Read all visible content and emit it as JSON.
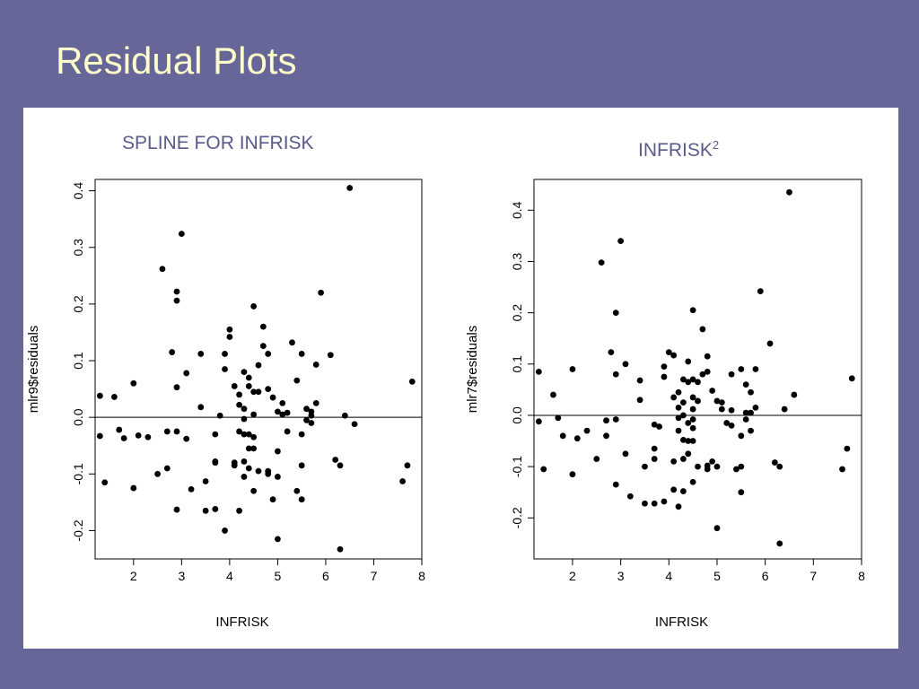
{
  "slide": {
    "title": "Residual Plots"
  },
  "chart_data": [
    {
      "type": "scatter",
      "title": "SPLINE FOR INFRISK",
      "xlabel": "INFRISK",
      "ylabel": "mlr9$residuals",
      "xlim": [
        1.2,
        8.0
      ],
      "ylim": [
        -0.25,
        0.42
      ],
      "xticks": [
        "2",
        "3",
        "4",
        "5",
        "6",
        "7",
        "8"
      ],
      "yticks": [
        "-0.2",
        "-0.1",
        "0.0",
        "0.1",
        "0.2",
        "0.3",
        "0.4"
      ],
      "reference_line_y": 0,
      "grid": false,
      "points": [
        [
          1.3,
          0.038
        ],
        [
          1.3,
          -0.033
        ],
        [
          1.4,
          -0.115
        ],
        [
          1.6,
          0.036
        ],
        [
          1.7,
          -0.022
        ],
        [
          1.8,
          -0.037
        ],
        [
          2.0,
          0.06
        ],
        [
          2.0,
          -0.125
        ],
        [
          2.1,
          -0.032
        ],
        [
          2.3,
          -0.035
        ],
        [
          2.5,
          -0.1
        ],
        [
          2.6,
          0.262
        ],
        [
          2.7,
          -0.025
        ],
        [
          2.7,
          -0.09
        ],
        [
          2.8,
          0.115
        ],
        [
          2.9,
          0.222
        ],
        [
          2.9,
          0.206
        ],
        [
          2.9,
          0.053
        ],
        [
          2.9,
          -0.025
        ],
        [
          2.9,
          -0.163
        ],
        [
          3.0,
          0.324
        ],
        [
          3.1,
          0.078
        ],
        [
          3.1,
          -0.038
        ],
        [
          3.2,
          -0.127
        ],
        [
          3.4,
          0.112
        ],
        [
          3.4,
          0.018
        ],
        [
          3.5,
          -0.113
        ],
        [
          3.5,
          -0.165
        ],
        [
          3.7,
          -0.03
        ],
        [
          3.7,
          -0.078
        ],
        [
          3.7,
          -0.08
        ],
        [
          3.7,
          -0.162
        ],
        [
          3.8,
          0.003
        ],
        [
          3.9,
          0.112
        ],
        [
          3.9,
          0.085
        ],
        [
          3.9,
          -0.2
        ],
        [
          4.0,
          0.142
        ],
        [
          4.0,
          0.155
        ],
        [
          4.1,
          0.055
        ],
        [
          4.1,
          -0.08
        ],
        [
          4.1,
          -0.085
        ],
        [
          4.2,
          0.04
        ],
        [
          4.2,
          0.022
        ],
        [
          4.2,
          -0.025
        ],
        [
          4.2,
          -0.165
        ],
        [
          4.3,
          0.08
        ],
        [
          4.3,
          0.015
        ],
        [
          4.3,
          -0.003
        ],
        [
          4.3,
          -0.03
        ],
        [
          4.3,
          -0.078
        ],
        [
          4.3,
          -0.105
        ],
        [
          4.4,
          0.07
        ],
        [
          4.4,
          0.055
        ],
        [
          4.4,
          -0.03
        ],
        [
          4.4,
          -0.055
        ],
        [
          4.4,
          -0.09
        ],
        [
          4.5,
          0.196
        ],
        [
          4.5,
          0.045
        ],
        [
          4.5,
          0.005
        ],
        [
          4.5,
          -0.035
        ],
        [
          4.5,
          -0.055
        ],
        [
          4.5,
          -0.13
        ],
        [
          4.6,
          0.092
        ],
        [
          4.6,
          0.045
        ],
        [
          4.6,
          -0.095
        ],
        [
          4.7,
          0.16
        ],
        [
          4.7,
          0.126
        ],
        [
          4.8,
          0.112
        ],
        [
          4.8,
          0.05
        ],
        [
          4.8,
          -0.1
        ],
        [
          4.8,
          -0.095
        ],
        [
          4.9,
          0.035
        ],
        [
          4.9,
          -0.145
        ],
        [
          5.0,
          0.01
        ],
        [
          5.0,
          -0.06
        ],
        [
          5.0,
          -0.105
        ],
        [
          5.0,
          -0.215
        ],
        [
          5.1,
          0.025
        ],
        [
          5.1,
          0.005
        ],
        [
          5.2,
          0.008
        ],
        [
          5.2,
          -0.025
        ],
        [
          5.3,
          0.132
        ],
        [
          5.4,
          0.065
        ],
        [
          5.4,
          -0.13
        ],
        [
          5.5,
          0.112
        ],
        [
          5.5,
          -0.03
        ],
        [
          5.5,
          -0.085
        ],
        [
          5.5,
          -0.145
        ],
        [
          5.6,
          0.015
        ],
        [
          5.6,
          -0.005
        ],
        [
          5.7,
          0.01
        ],
        [
          5.7,
          0.003
        ],
        [
          5.7,
          -0.01
        ],
        [
          5.8,
          0.093
        ],
        [
          5.8,
          0.025
        ],
        [
          5.9,
          0.22
        ],
        [
          6.1,
          0.11
        ],
        [
          6.2,
          -0.075
        ],
        [
          6.3,
          -0.085
        ],
        [
          6.3,
          -0.233
        ],
        [
          6.4,
          0.003
        ],
        [
          6.5,
          0.405
        ],
        [
          6.6,
          -0.012
        ],
        [
          7.6,
          -0.113
        ],
        [
          7.7,
          -0.085
        ],
        [
          7.8,
          0.063
        ]
      ]
    },
    {
      "type": "scatter",
      "title": "INFRISK",
      "title_superscript": "2",
      "xlabel": "INFRISK",
      "ylabel": "mlr7$residuals",
      "xlim": [
        1.2,
        8.0
      ],
      "ylim": [
        -0.28,
        0.46
      ],
      "xticks": [
        "2",
        "3",
        "4",
        "5",
        "6",
        "7",
        "8"
      ],
      "yticks": [
        "-0.2",
        "-0.1",
        "0.0",
        "0.1",
        "0.2",
        "0.3",
        "0.4"
      ],
      "reference_line_y": 0,
      "grid": false,
      "points": [
        [
          1.3,
          0.085
        ],
        [
          1.3,
          -0.012
        ],
        [
          1.4,
          -0.105
        ],
        [
          1.6,
          0.04
        ],
        [
          1.7,
          -0.005
        ],
        [
          1.8,
          -0.04
        ],
        [
          2.0,
          0.09
        ],
        [
          2.0,
          -0.115
        ],
        [
          2.1,
          -0.045
        ],
        [
          2.3,
          -0.03
        ],
        [
          2.5,
          -0.085
        ],
        [
          2.6,
          0.298
        ],
        [
          2.7,
          -0.01
        ],
        [
          2.7,
          -0.04
        ],
        [
          2.8,
          0.123
        ],
        [
          2.9,
          0.2
        ],
        [
          2.9,
          0.08
        ],
        [
          2.9,
          -0.008
        ],
        [
          2.9,
          -0.135
        ],
        [
          3.0,
          0.34
        ],
        [
          3.1,
          0.1
        ],
        [
          3.1,
          -0.075
        ],
        [
          3.2,
          -0.158
        ],
        [
          3.4,
          0.068
        ],
        [
          3.4,
          0.03
        ],
        [
          3.5,
          -0.1
        ],
        [
          3.5,
          -0.172
        ],
        [
          3.7,
          -0.018
        ],
        [
          3.7,
          -0.065
        ],
        [
          3.7,
          -0.085
        ],
        [
          3.7,
          -0.172
        ],
        [
          3.8,
          -0.022
        ],
        [
          3.9,
          0.095
        ],
        [
          3.9,
          0.075
        ],
        [
          3.9,
          -0.168
        ],
        [
          4.0,
          0.123
        ],
        [
          4.1,
          0.117
        ],
        [
          4.1,
          0.035
        ],
        [
          4.1,
          -0.09
        ],
        [
          4.1,
          -0.145
        ],
        [
          4.2,
          0.045
        ],
        [
          4.2,
          0.015
        ],
        [
          4.2,
          -0.005
        ],
        [
          4.2,
          -0.03
        ],
        [
          4.2,
          -0.178
        ],
        [
          4.3,
          0.07
        ],
        [
          4.3,
          0.025
        ],
        [
          4.3,
          0.0
        ],
        [
          4.3,
          -0.048
        ],
        [
          4.3,
          -0.085
        ],
        [
          4.3,
          -0.148
        ],
        [
          4.4,
          0.105
        ],
        [
          4.4,
          0.065
        ],
        [
          4.4,
          -0.015
        ],
        [
          4.4,
          -0.05
        ],
        [
          4.4,
          -0.075
        ],
        [
          4.5,
          0.205
        ],
        [
          4.5,
          0.07
        ],
        [
          4.5,
          0.035
        ],
        [
          4.5,
          0.012
        ],
        [
          4.5,
          -0.008
        ],
        [
          4.5,
          -0.025
        ],
        [
          4.5,
          -0.05
        ],
        [
          4.5,
          -0.13
        ],
        [
          4.6,
          0.065
        ],
        [
          4.6,
          0.028
        ],
        [
          4.6,
          -0.1
        ],
        [
          4.7,
          0.168
        ],
        [
          4.7,
          0.08
        ],
        [
          4.8,
          0.115
        ],
        [
          4.8,
          0.085
        ],
        [
          4.8,
          -0.098
        ],
        [
          4.8,
          -0.105
        ],
        [
          4.9,
          0.048
        ],
        [
          4.9,
          -0.09
        ],
        [
          5.0,
          0.028
        ],
        [
          5.0,
          -0.1
        ],
        [
          5.0,
          -0.22
        ],
        [
          5.1,
          0.025
        ],
        [
          5.1,
          0.012
        ],
        [
          5.2,
          -0.015
        ],
        [
          5.3,
          0.08
        ],
        [
          5.3,
          0.01
        ],
        [
          5.3,
          -0.02
        ],
        [
          5.4,
          -0.105
        ],
        [
          5.5,
          0.09
        ],
        [
          5.5,
          -0.04
        ],
        [
          5.5,
          -0.1
        ],
        [
          5.5,
          -0.15
        ],
        [
          5.6,
          0.06
        ],
        [
          5.6,
          0.005
        ],
        [
          5.6,
          -0.008
        ],
        [
          5.7,
          0.045
        ],
        [
          5.7,
          0.005
        ],
        [
          5.7,
          -0.03
        ],
        [
          5.8,
          0.09
        ],
        [
          5.8,
          0.015
        ],
        [
          5.9,
          0.242
        ],
        [
          6.1,
          0.14
        ],
        [
          6.2,
          -0.092
        ],
        [
          6.3,
          -0.1
        ],
        [
          6.3,
          -0.25
        ],
        [
          6.4,
          0.012
        ],
        [
          6.5,
          0.435
        ],
        [
          6.6,
          0.04
        ],
        [
          7.6,
          -0.105
        ],
        [
          7.7,
          -0.065
        ],
        [
          7.8,
          0.072
        ]
      ]
    }
  ]
}
